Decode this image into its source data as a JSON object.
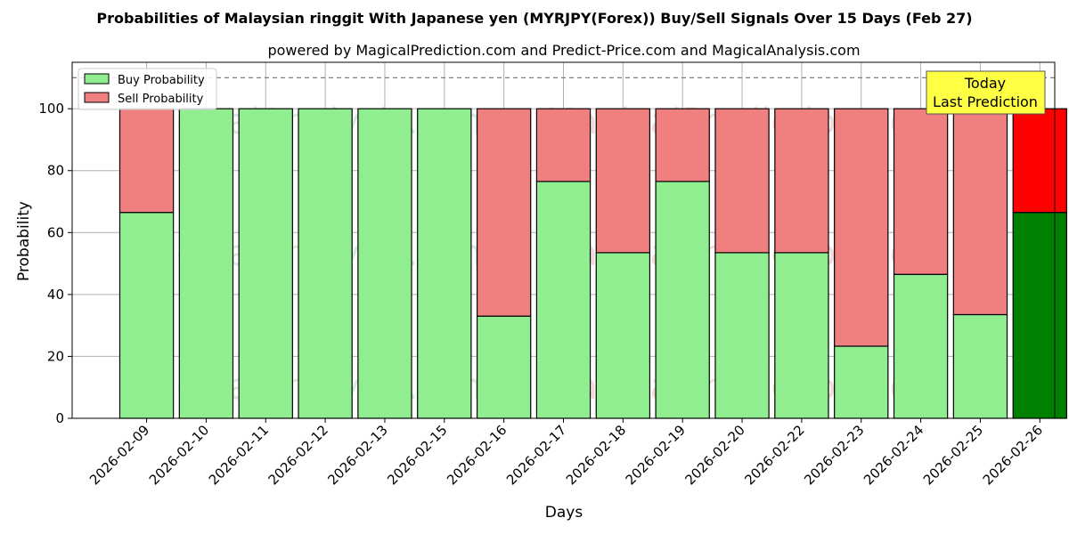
{
  "chart_data": {
    "type": "bar",
    "stacked": true,
    "title": "Probabilities of Malaysian ringgit With Japanese yen (MYRJPY(Forex)) Buy/Sell Signals Over 15 Days (Feb 27)",
    "subtitle": "powered by MagicalPrediction.com and Predict-Price.com and MagicalAnalysis.com",
    "xlabel": "Days",
    "ylabel": "Probability",
    "ylim": [
      0,
      115
    ],
    "yticks": [
      0,
      20,
      40,
      60,
      80,
      100
    ],
    "grid": true,
    "legend_position": "top-left",
    "reference_line": 110,
    "categories": [
      "2026-02-09",
      "2026-02-10",
      "2026-02-11",
      "2026-02-12",
      "2026-02-13",
      "2026-02-15",
      "2026-02-16",
      "2026-02-17",
      "2026-02-18",
      "2026-02-19",
      "2026-02-20",
      "2026-02-22",
      "2026-02-23",
      "2026-02-24",
      "2026-02-25",
      "2026-02-26"
    ],
    "series": [
      {
        "name": "Buy Probability",
        "color": "#90EE90",
        "highlight_color": "#008000",
        "values": [
          66.5,
          100,
          100,
          100,
          100,
          100,
          33,
          76.5,
          53.5,
          76.5,
          53.5,
          53.5,
          23.3,
          46.5,
          33.5,
          66.5
        ]
      },
      {
        "name": "Sell Probability",
        "color": "#F08080",
        "highlight_color": "#FF0000",
        "values": [
          33.5,
          0,
          0,
          0,
          0,
          0,
          67,
          23.5,
          46.5,
          23.5,
          46.5,
          46.5,
          76.7,
          53.5,
          66.5,
          33.5
        ]
      }
    ],
    "highlight_index": 15,
    "annotation": {
      "line1": "Today",
      "line2": "Last Prediction",
      "color": "#FFFF44"
    },
    "watermarks": [
      "MagicalAnalysis.com",
      "MagicalPrediction.com"
    ]
  }
}
